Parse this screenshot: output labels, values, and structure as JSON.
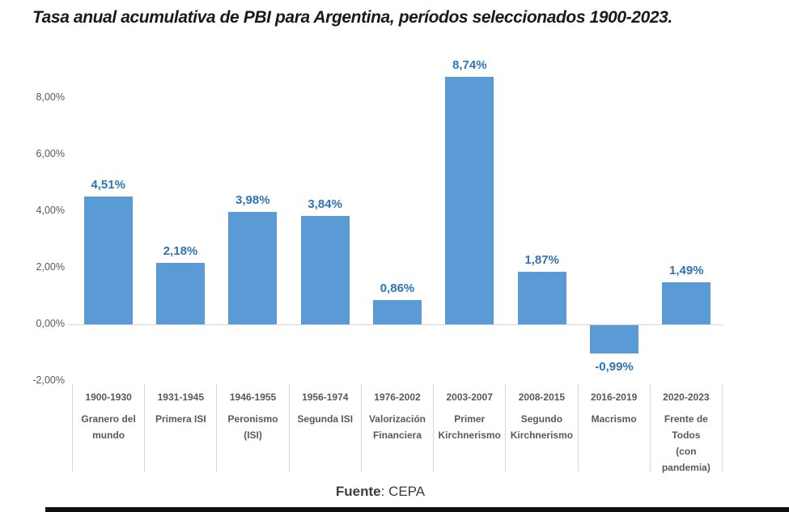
{
  "page": {
    "title": "Tasa anual acumulativa de PBI para Argentina, períodos seleccionados 1900-2023.",
    "source_label": "Fuente",
    "source_rest": ": CEPA"
  },
  "colors": {
    "bar_fill": "#5B9BD5",
    "value_label": "#2E75B6",
    "axis_text": "#595959",
    "axis_line": "#d6d6d6",
    "title_text": "#1a1a1a",
    "bottom_bar": "#0f0f0f"
  },
  "chart_data": {
    "type": "bar",
    "title": "Tasa anual acumulativa de PBI para Argentina, períodos seleccionados 1900-2023.",
    "xlabel": "",
    "ylabel": "",
    "categories": [
      "1900-1930",
      "1931-1945",
      "1946-1955",
      "1956-1974",
      "1976-2002",
      "2003-2007",
      "2008-2015",
      "2016-2019",
      "2020-2023"
    ],
    "category_names": [
      "Granero del\nmundo",
      "Primera ISI",
      "Peronismo\n(ISI)",
      "Segunda ISI",
      "Valorización\nFinanciera",
      "Primer\nKirchnerismo",
      "Segundo\nKirchnerismo",
      "Macrismo",
      "Frente de\nTodos\n(con\npandemia)"
    ],
    "values": [
      4.51,
      2.18,
      3.98,
      3.84,
      0.86,
      8.74,
      1.87,
      -0.99,
      1.49
    ],
    "value_labels": [
      "4,51%",
      "2,18%",
      "3,98%",
      "3,84%",
      "0,86%",
      "8,74%",
      "1,87%",
      "-0,99%",
      "1,49%"
    ],
    "ytick_values": [
      8,
      6,
      4,
      2,
      0,
      -2
    ],
    "ytick_labels": [
      "8,00%",
      "6,00%",
      "4,00%",
      "2,00%",
      "0,00%",
      "-2,00%"
    ],
    "ylim": [
      -2,
      9
    ],
    "grid": false,
    "legend": false,
    "source": "Fuente: CEPA"
  }
}
